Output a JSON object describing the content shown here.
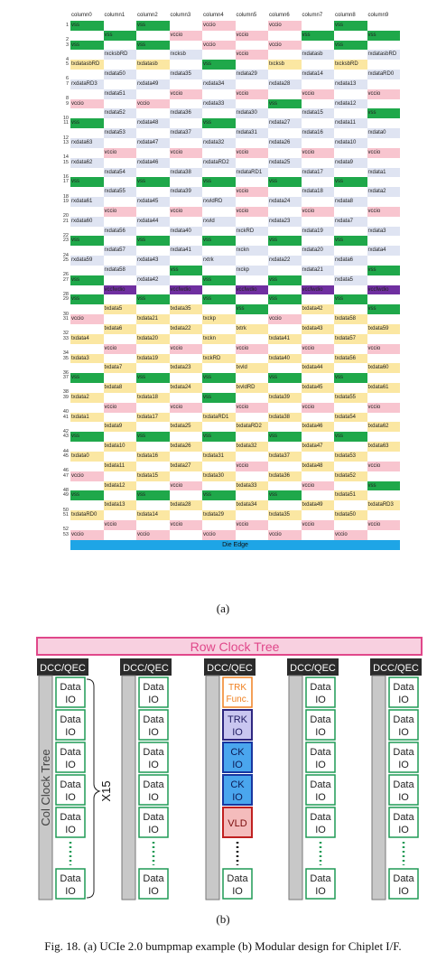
{
  "bumpmap": {
    "columns": [
      "column0",
      "column1",
      "column2",
      "column3",
      "column4",
      "column5",
      "column6",
      "column7",
      "column8",
      "column9"
    ],
    "rows": [
      [
        "vss",
        "",
        "vss",
        "",
        "vccio",
        "",
        "vccio",
        "",
        "vss",
        ""
      ],
      [
        "",
        "vss",
        "",
        "vccio",
        "",
        "vccio",
        "",
        "vss",
        "",
        "vss"
      ],
      [
        "vss",
        "",
        "vss",
        "",
        "vccio",
        "",
        "vccio",
        "",
        "vss",
        ""
      ],
      [
        "",
        "rxcksbRD",
        "",
        "rxcksb",
        "",
        "vccio",
        "",
        "rxdatasb",
        "",
        "rxdatasbRD"
      ],
      [
        "txdatasbRD",
        "",
        "txdatasb",
        "",
        "vss",
        "",
        "txcksb",
        "",
        "txcksbRD",
        ""
      ],
      [
        "",
        "rxdata50",
        "",
        "rxdata35",
        "",
        "rxdata29",
        "",
        "rxdata14",
        "",
        "rxdataRD0"
      ],
      [
        "rxdataRD3",
        "",
        "rxdata49",
        "",
        "rxdata34",
        "",
        "rxdata28",
        "",
        "rxdata13",
        ""
      ],
      [
        "",
        "rxdata51",
        "",
        "vccio",
        "",
        "vccio",
        "",
        "vccio",
        "",
        "vccio"
      ],
      [
        "vccio",
        "",
        "vccio",
        "",
        "rxdata33",
        "",
        "vss",
        "",
        "rxdata12",
        ""
      ],
      [
        "",
        "rxdata52",
        "",
        "rxdata36",
        "",
        "rxdata30",
        "",
        "rxdata15",
        "",
        "vss"
      ],
      [
        "vss",
        "",
        "rxdata48",
        "",
        "vss",
        "",
        "rxdata27",
        "",
        "rxdata11",
        ""
      ],
      [
        "",
        "rxdata53",
        "",
        "rxdata37",
        "",
        "rxdata31",
        "",
        "rxdata16",
        "",
        "rxdata0"
      ],
      [
        "rxdata63",
        "",
        "rxdata47",
        "",
        "rxdata32",
        "",
        "rxdata26",
        "",
        "rxdata10",
        ""
      ],
      [
        "",
        "vccio",
        "",
        "vccio",
        "",
        "vccio",
        "",
        "vccio",
        "",
        "vccio"
      ],
      [
        "rxdata62",
        "",
        "rxdata46",
        "",
        "rxdataRD2",
        "",
        "rxdata25",
        "",
        "rxdata9",
        ""
      ],
      [
        "",
        "rxdata54",
        "",
        "rxdata38",
        "",
        "rxdataRD1",
        "",
        "rxdata17",
        "",
        "rxdata1"
      ],
      [
        "vss",
        "",
        "vss",
        "",
        "vss",
        "",
        "vss",
        "",
        "vss",
        ""
      ],
      [
        "",
        "rxdata55",
        "",
        "rxdata39",
        "",
        "vccio",
        "",
        "rxdata18",
        "",
        "rxdata2"
      ],
      [
        "rxdata61",
        "",
        "rxdata45",
        "",
        "rxvldRD",
        "",
        "rxdata24",
        "",
        "rxdata8",
        ""
      ],
      [
        "",
        "vccio",
        "",
        "vccio",
        "",
        "vccio",
        "",
        "vccio",
        "",
        "vccio"
      ],
      [
        "rxdata60",
        "",
        "rxdata44",
        "",
        "rxvld",
        "",
        "rxdata23",
        "",
        "rxdata7",
        ""
      ],
      [
        "",
        "rxdata56",
        "",
        "rxdata40",
        "",
        "rxckRD",
        "",
        "rxdata19",
        "",
        "rxdata3"
      ],
      [
        "vss",
        "",
        "vss",
        "",
        "vss",
        "",
        "vss",
        "",
        "vss",
        ""
      ],
      [
        "",
        "rxdata57",
        "",
        "rxdata41",
        "",
        "rxckn",
        "",
        "rxdata20",
        "",
        "rxdata4"
      ],
      [
        "rxdata59",
        "",
        "rxdata43",
        "",
        "rxtrk",
        "",
        "rxdata22",
        "",
        "rxdata6",
        ""
      ],
      [
        "",
        "rxdata58",
        "",
        "vss",
        "",
        "rxckp",
        "",
        "rxdata21",
        "",
        "vss"
      ],
      [
        "vss",
        "",
        "rxdata42",
        "",
        "vss",
        "",
        "vss",
        "",
        "rxdata5",
        ""
      ],
      [
        "",
        "vccfwdio",
        "",
        "vccfwdio",
        "",
        "vccfwdio",
        "",
        "vccfwdio",
        "",
        "vccfwdio"
      ],
      [
        "vss",
        "",
        "vss",
        "",
        "vss",
        "",
        "vss",
        "",
        "vss",
        ""
      ],
      [
        "",
        "txdata5",
        "",
        "txdata35",
        "",
        "vss",
        "",
        "txdata42",
        "",
        "vss"
      ],
      [
        "vccio",
        "",
        "txdata21",
        "",
        "txckp",
        "",
        "vccio",
        "",
        "txdata58",
        ""
      ],
      [
        "",
        "txdata6",
        "",
        "txdata22",
        "",
        "txtrk",
        "",
        "txdata43",
        "",
        "txdata59"
      ],
      [
        "txdata4",
        "",
        "txdata20",
        "",
        "txckn",
        "",
        "txdata41",
        "",
        "txdata57",
        ""
      ],
      [
        "",
        "vccio",
        "",
        "vccio",
        "",
        "vccio",
        "",
        "vccio",
        "",
        "vccio"
      ],
      [
        "txdata3",
        "",
        "txdata19",
        "",
        "txckRD",
        "",
        "txdata40",
        "",
        "txdata56",
        ""
      ],
      [
        "",
        "txdata7",
        "",
        "txdata23",
        "",
        "txvld",
        "",
        "txdata44",
        "",
        "txdata60"
      ],
      [
        "vss",
        "",
        "vss",
        "",
        "vss",
        "",
        "vss",
        "",
        "vss",
        ""
      ],
      [
        "",
        "txdata8",
        "",
        "txdata24",
        "",
        "txvldRD",
        "",
        "txdata45",
        "",
        "txdata61"
      ],
      [
        "txdata2",
        "",
        "txdata18",
        "",
        "vss",
        "",
        "txdata39",
        "",
        "txdata55",
        ""
      ],
      [
        "",
        "vccio",
        "",
        "vccio",
        "",
        "vccio",
        "",
        "vccio",
        "",
        "vccio"
      ],
      [
        "txdata1",
        "",
        "txdata17",
        "",
        "txdataRD1",
        "",
        "txdata38",
        "",
        "txdata54",
        ""
      ],
      [
        "",
        "txdata9",
        "",
        "txdata25",
        "",
        "txdataRD2",
        "",
        "txdata46",
        "",
        "txdata62"
      ],
      [
        "vss",
        "",
        "vss",
        "",
        "vss",
        "",
        "vss",
        "",
        "vss",
        ""
      ],
      [
        "",
        "txdata10",
        "",
        "txdata26",
        "",
        "txdata32",
        "",
        "txdata47",
        "",
        "txdata63"
      ],
      [
        "txdata0",
        "",
        "txdata16",
        "",
        "txdata31",
        "",
        "txdata37",
        "",
        "txdata53",
        ""
      ],
      [
        "",
        "txdata11",
        "",
        "txdata27",
        "",
        "vccio",
        "",
        "txdata48",
        "",
        "vccio"
      ],
      [
        "vccio",
        "",
        "txdata15",
        "",
        "txdata30",
        "",
        "txdata36",
        "",
        "txdata52",
        ""
      ],
      [
        "",
        "txdata12",
        "",
        "vccio",
        "",
        "txdata33",
        "",
        "vccio",
        "",
        "vss"
      ],
      [
        "vss",
        "",
        "vss",
        "",
        "vss",
        "",
        "vss",
        "",
        "txdata51",
        ""
      ],
      [
        "",
        "txdata13",
        "",
        "txdata28",
        "",
        "txdata34",
        "",
        "txdata49",
        "",
        "txdataRD3"
      ],
      [
        "txdataRD0",
        "",
        "txdata14",
        "",
        "txdata29",
        "",
        "txdata35",
        "",
        "txdata50",
        ""
      ],
      [
        "",
        "vccio",
        "",
        "vccio",
        "",
        "vccio",
        "",
        "vccio",
        "",
        "vccio"
      ],
      [
        "vccio",
        "",
        "vccio",
        "",
        "vccio",
        "",
        "vccio",
        "",
        "vccio",
        ""
      ]
    ],
    "die_edge_label": "Die Edge",
    "colors": {
      "vss": "#1fa84a",
      "vccio": "#f8c5cf",
      "rx": "#dfe4f2",
      "tx": "#fbe7a2",
      "vccfwdio": "#6f2fa0",
      "die_edge": "#1ea5e6"
    }
  },
  "caption_a": "(a)",
  "modular": {
    "row_clock_tree": "Row Clock Tree",
    "col_clock_tree": "Col Clock Tree",
    "dcc_qec": "DCC/QEC",
    "data_io_line1": "Data",
    "data_io_line2": "IO",
    "x15_label": "X15",
    "trk_func_line1": "TRK",
    "trk_func_line2": "Func.",
    "trk_io_line1": "TRK",
    "trk_io_line2": "IO",
    "ck_io_line1": "CK",
    "ck_io_line2": "IO",
    "vld_label": "VLD",
    "colors": {
      "row_clock_fill": "#f8d0e0",
      "row_clock_border": "#e0478a",
      "row_clock_text": "#e0478a",
      "dcc_bg": "#2b2b2b",
      "col_clock": "#c8c8c8",
      "data_io_border": "#1f9a55",
      "data_io_fill": "#ffffff",
      "trk_func_border": "#f08020",
      "trk_io_fill": "#c9c6f0",
      "trk_io_border": "#2e2780",
      "ck_io_fill": "#4aa6ee",
      "ck_io_border": "#1836a0",
      "vld_fill": "#f4bcbc",
      "vld_border": "#c02020"
    }
  },
  "caption_b": "(b)",
  "figure_caption": "Fig. 18. (a) UCIe 2.0 bumpmap example (b) Modular design for Chiplet I/F."
}
